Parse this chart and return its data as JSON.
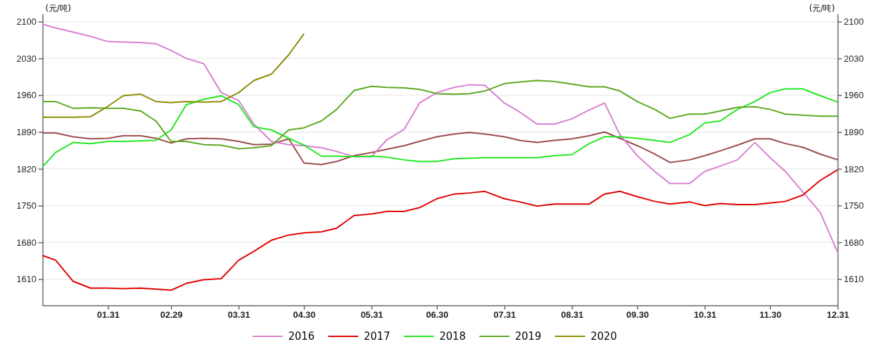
{
  "chart_data": {
    "type": "line",
    "ylabel": "(元/吨)",
    "y2label": "(元/吨)",
    "x": [
      "--01-01",
      "--01-07",
      "--01-15",
      "--01-23",
      "--01-31",
      "--02-07",
      "--02-15",
      "--02-22",
      "--02-29",
      "--03-07",
      "--03-15",
      "--03-23",
      "--03-31",
      "--04-07",
      "--04-15",
      "--04-23",
      "--04-30",
      "--05-08",
      "--05-15",
      "--05-23",
      "--05-31",
      "--06-07",
      "--06-15",
      "--06-22",
      "--06-30",
      "--07-08",
      "--07-15",
      "--07-22",
      "--07-31",
      "--08-07",
      "--08-15",
      "--08-23",
      "--08-31",
      "--09-08",
      "--09-15",
      "--09-22",
      "--09-30",
      "--10-08",
      "--10-15",
      "--10-24",
      "--10-31",
      "--11-07",
      "--11-15",
      "--11-23",
      "--11-30",
      "--12-07",
      "--12-15",
      "--12-23",
      "--12-31"
    ],
    "xlim": [
      "--01-01",
      "--12-31"
    ],
    "xticks": [
      {
        "value": "--01-31",
        "label": "01.31"
      },
      {
        "value": "--02-29",
        "label": "02.29"
      },
      {
        "value": "--03-31",
        "label": "03.31"
      },
      {
        "value": "--04-30",
        "label": "04.30"
      },
      {
        "value": "--05-31",
        "label": "05.31"
      },
      {
        "value": "--06-30",
        "label": "06.30"
      },
      {
        "value": "--07-31",
        "label": "07.31"
      },
      {
        "value": "--08-31",
        "label": "08.31"
      },
      {
        "value": "--09-30",
        "label": "09.30"
      },
      {
        "value": "--10-31",
        "label": "10.31"
      },
      {
        "value": "--11-30",
        "label": "11.30"
      },
      {
        "value": "--12-31",
        "label": "12.31"
      }
    ],
    "ylim": [
      1560,
      2115
    ],
    "yticks": [
      1610,
      1680,
      1750,
      1820,
      1890,
      1960,
      2030,
      2100
    ],
    "y2lim": [
      1560,
      2115
    ],
    "y2ticks": [
      1610,
      1680,
      1750,
      1820,
      1890,
      1960,
      2030,
      2100
    ],
    "grid": "y",
    "legend": "bottom",
    "line_style": "solid",
    "marker": "none",
    "series": [
      {
        "color": "#9b4a4a",
        "values": [
          1888,
          1888,
          1881,
          1877,
          1878,
          1883,
          1883,
          1878,
          1869,
          1877,
          1878,
          1877,
          1872,
          1866,
          1867,
          1877,
          1831,
          1828,
          1834,
          1845,
          1851,
          1857,
          1864,
          1872,
          1881,
          1886,
          1889,
          1886,
          1881,
          1874,
          1870,
          1874,
          1877,
          1883,
          1890,
          1878,
          1864,
          1848,
          1832,
          1837,
          1845,
          1854,
          1865,
          1877,
          1877,
          1868,
          1861,
          1848,
          1837
        ]
      },
      {
        "name": "2016",
        "color": "#d87fcf",
        "values": [
          2095,
          2088,
          2080,
          2072,
          2062,
          2061,
          2060,
          2058,
          2045,
          2030,
          2020,
          1965,
          1950,
          1905,
          1872,
          1866,
          1864,
          1860,
          1853,
          1843,
          1843,
          1875,
          1895,
          1945,
          1965,
          1975,
          1980,
          1979,
          1945,
          1928,
          1905,
          1905,
          1915,
          1932,
          1945,
          1885,
          1845,
          1815,
          1792,
          1792,
          1815,
          1825,
          1837,
          1870,
          1841,
          1815,
          1776,
          1737,
          1661
        ]
      },
      {
        "name": "2017",
        "color": "#e00000",
        "values": [
          1655,
          1646,
          1606,
          1593,
          1593,
          1592,
          1593,
          1591,
          1589,
          1602,
          1609,
          1611,
          1646,
          1663,
          1684,
          1694,
          1698,
          1700,
          1707,
          1731,
          1734,
          1739,
          1739,
          1746,
          1763,
          1772,
          1774,
          1777,
          1763,
          1757,
          1749,
          1753,
          1753,
          1753,
          1772,
          1777,
          1767,
          1758,
          1753,
          1757,
          1750,
          1754,
          1752,
          1752,
          1755,
          1758,
          1770,
          1798,
          1818
        ]
      },
      {
        "name": "2018",
        "color": "#22e622",
        "values": [
          1824,
          1851,
          1870,
          1868,
          1872,
          1872,
          1873,
          1874,
          1894,
          1942,
          1952,
          1959,
          1942,
          1900,
          1894,
          1878,
          1865,
          1844,
          1844,
          1843,
          1844,
          1842,
          1837,
          1834,
          1834,
          1839,
          1840,
          1841,
          1841,
          1841,
          1841,
          1845,
          1847,
          1868,
          1881,
          1881,
          1878,
          1874,
          1870,
          1885,
          1907,
          1911,
          1933,
          1948,
          1965,
          1972,
          1972,
          1959,
          1947
        ]
      },
      {
        "name": "2019",
        "color": "#5aa81e",
        "values": [
          1948,
          1948,
          1935,
          1936,
          1935,
          1935,
          1930,
          1911,
          1872,
          1872,
          1866,
          1865,
          1858,
          1860,
          1864,
          1894,
          1898,
          1911,
          1933,
          1969,
          1977,
          1975,
          1974,
          1971,
          1963,
          1962,
          1963,
          1968,
          1982,
          1985,
          1988,
          1986,
          1981,
          1976,
          1976,
          1968,
          1948,
          1933,
          1916,
          1924,
          1924,
          1930,
          1937,
          1938,
          1933,
          1924,
          1922,
          1920,
          1920
        ]
      },
      {
        "name": "2020",
        "color": "#8b8b00",
        "values": [
          1918,
          1918,
          1918,
          1919,
          1939,
          1959,
          1962,
          1948,
          1946,
          1948,
          1947,
          1948,
          1965,
          1988,
          2000,
          2037,
          2077,
          null,
          null,
          null,
          null,
          null,
          null,
          null,
          null,
          null,
          null,
          null,
          null,
          null,
          null,
          null,
          null,
          null,
          null,
          null,
          null,
          null,
          null,
          null,
          null,
          null,
          null,
          null,
          null,
          null,
          null,
          null,
          null
        ]
      }
    ]
  }
}
